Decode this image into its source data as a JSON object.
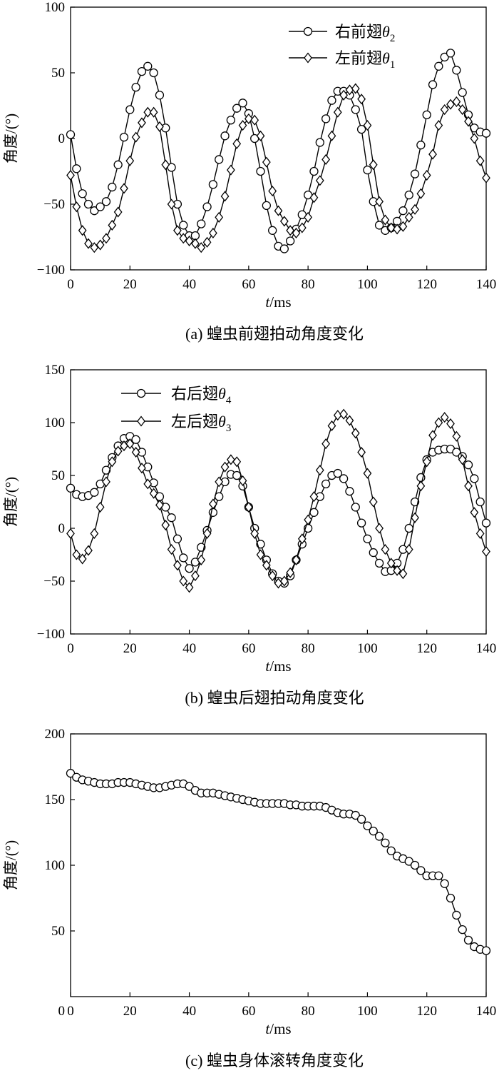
{
  "chart_data": [
    {
      "type": "line",
      "caption": "(a) 蝗虫前翅拍动角度变化",
      "xlabel_italic": "t",
      "xlabel_unit": "/ms",
      "ylabel": "角度/(°)",
      "xlim": [
        0,
        140
      ],
      "ylim": [
        -100,
        100
      ],
      "xticks": [
        0,
        20,
        40,
        60,
        80,
        100,
        120,
        140
      ],
      "yticks": [
        -100,
        -50,
        0,
        50,
        100
      ],
      "legend_position": "top-right",
      "series": [
        {
          "name": "右前翅θ2",
          "label_base": "右前翅",
          "label_sym": "θ",
          "label_sub": "2",
          "marker": "circle",
          "x": [
            0,
            2,
            4,
            6,
            8,
            10,
            12,
            14,
            16,
            18,
            20,
            22,
            24,
            26,
            28,
            30,
            32,
            34,
            36,
            38,
            40,
            42,
            44,
            46,
            48,
            50,
            52,
            54,
            56,
            58,
            60,
            62,
            64,
            66,
            68,
            70,
            72,
            74,
            76,
            78,
            80,
            82,
            84,
            86,
            88,
            90,
            92,
            94,
            96,
            98,
            100,
            102,
            104,
            106,
            108,
            110,
            112,
            114,
            116,
            118,
            120,
            122,
            124,
            126,
            128,
            130,
            132,
            134,
            136,
            138,
            140
          ],
          "y": [
            3,
            -23,
            -42,
            -50,
            -55,
            -52,
            -48,
            -37,
            -20,
            1,
            22,
            39,
            51,
            55,
            50,
            33,
            8,
            -22,
            -50,
            -66,
            -74,
            -74,
            -65,
            -52,
            -35,
            -16,
            2,
            14,
            23,
            27,
            19,
            0,
            -25,
            -51,
            -70,
            -82,
            -84,
            -78,
            -69,
            -58,
            -43,
            -25,
            -3,
            15,
            29,
            36,
            36,
            33,
            22,
            7,
            -24,
            -48,
            -66,
            -70,
            -68,
            -63,
            -55,
            -43,
            -27,
            -5,
            18,
            41,
            55,
            62,
            65,
            52,
            35,
            18,
            8,
            5,
            4
          ]
        },
        {
          "name": "左前翅θ1",
          "label_base": "左前翅",
          "label_sym": "θ",
          "label_sub": "1",
          "marker": "diamond",
          "x": [
            0,
            2,
            4,
            6,
            8,
            10,
            12,
            14,
            16,
            18,
            20,
            22,
            24,
            26,
            28,
            30,
            32,
            34,
            36,
            38,
            40,
            42,
            44,
            46,
            48,
            50,
            52,
            54,
            56,
            58,
            60,
            62,
            64,
            66,
            68,
            70,
            72,
            74,
            76,
            78,
            80,
            82,
            84,
            86,
            88,
            90,
            92,
            94,
            96,
            98,
            100,
            102,
            104,
            106,
            108,
            110,
            112,
            114,
            116,
            118,
            120,
            122,
            124,
            126,
            128,
            130,
            132,
            134,
            136,
            138,
            140
          ],
          "y": [
            -28,
            -52,
            -70,
            -80,
            -83,
            -81,
            -76,
            -66,
            -56,
            -38,
            -17,
            1,
            12,
            20,
            20,
            9,
            -20,
            -50,
            -70,
            -76,
            -78,
            -80,
            -83,
            -79,
            -72,
            -60,
            -44,
            -24,
            -4,
            10,
            15,
            14,
            2,
            -18,
            -40,
            -55,
            -63,
            -70,
            -72,
            -68,
            -60,
            -45,
            -32,
            -16,
            2,
            20,
            33,
            37,
            38,
            30,
            10,
            -20,
            -48,
            -62,
            -68,
            -69,
            -67,
            -60,
            -54,
            -42,
            -28,
            -12,
            10,
            22,
            26,
            28,
            22,
            13,
            0,
            -17,
            -30
          ]
        }
      ]
    },
    {
      "type": "line",
      "caption": "(b) 蝗虫后翅拍动角度变化",
      "xlabel_italic": "t",
      "xlabel_unit": "/ms",
      "ylabel": "角度/(°)",
      "xlim": [
        0,
        140
      ],
      "ylim": [
        -100,
        150
      ],
      "xticks": [
        0,
        20,
        40,
        60,
        80,
        100,
        120,
        140
      ],
      "yticks": [
        -100,
        -50,
        0,
        50,
        100,
        150
      ],
      "legend_position": "top-left",
      "series": [
        {
          "name": "右后翅θ4",
          "label_base": "右后翅",
          "label_sym": "θ",
          "label_sub": "4",
          "marker": "circle",
          "x": [
            0,
            2,
            4,
            6,
            8,
            10,
            12,
            14,
            16,
            18,
            20,
            22,
            24,
            26,
            28,
            30,
            32,
            34,
            36,
            38,
            40,
            42,
            44,
            46,
            48,
            50,
            52,
            54,
            56,
            58,
            60,
            62,
            64,
            66,
            68,
            70,
            72,
            74,
            76,
            78,
            80,
            82,
            84,
            86,
            88,
            90,
            92,
            94,
            96,
            98,
            100,
            102,
            104,
            106,
            108,
            110,
            112,
            114,
            116,
            118,
            120,
            122,
            124,
            126,
            128,
            130,
            132,
            134,
            136,
            138,
            140
          ],
          "y": [
            38,
            32,
            30,
            31,
            34,
            42,
            55,
            67,
            78,
            85,
            87,
            84,
            72,
            58,
            43,
            30,
            20,
            10,
            -10,
            -28,
            -38,
            -32,
            -18,
            -2,
            15,
            30,
            44,
            51,
            50,
            40,
            20,
            0,
            -15,
            -30,
            -43,
            -50,
            -52,
            -45,
            -30,
            -15,
            0,
            15,
            30,
            42,
            50,
            52,
            47,
            35,
            20,
            5,
            -10,
            -23,
            -33,
            -41,
            -40,
            -33,
            -20,
            0,
            25,
            48,
            65,
            72,
            74,
            75,
            75,
            72,
            68,
            60,
            47,
            25,
            5
          ]
        },
        {
          "name": "左后翅θ3",
          "label_base": "左后翅",
          "label_sym": "θ",
          "label_sub": "3",
          "marker": "diamond",
          "x": [
            0,
            2,
            4,
            6,
            8,
            10,
            12,
            14,
            16,
            18,
            20,
            22,
            24,
            26,
            28,
            30,
            32,
            34,
            36,
            38,
            40,
            42,
            44,
            46,
            48,
            50,
            52,
            54,
            56,
            58,
            60,
            62,
            64,
            66,
            68,
            70,
            72,
            74,
            76,
            78,
            80,
            82,
            84,
            86,
            88,
            90,
            92,
            94,
            96,
            98,
            100,
            102,
            104,
            106,
            108,
            110,
            112,
            114,
            116,
            118,
            120,
            122,
            124,
            126,
            128,
            130,
            132,
            134,
            136,
            138,
            140
          ],
          "y": [
            -5,
            -25,
            -29,
            -21,
            -5,
            20,
            44,
            63,
            73,
            78,
            80,
            72,
            57,
            42,
            33,
            22,
            3,
            -20,
            -35,
            -50,
            -56,
            -45,
            -30,
            -5,
            23,
            44,
            58,
            65,
            63,
            45,
            20,
            -5,
            -25,
            -35,
            -45,
            -52,
            -50,
            -42,
            -30,
            -10,
            8,
            30,
            55,
            80,
            97,
            107,
            108,
            102,
            90,
            72,
            52,
            25,
            0,
            -20,
            -33,
            -40,
            -43,
            -20,
            10,
            40,
            63,
            88,
            100,
            105,
            99,
            87,
            65,
            40,
            15,
            -5,
            -22
          ]
        }
      ]
    },
    {
      "type": "line",
      "caption": "(c) 蝗虫身体滚转角度变化",
      "xlabel_italic": "t",
      "xlabel_unit": "/ms",
      "ylabel": "角度/(°)",
      "xlim": [
        0,
        140
      ],
      "ylim": [
        0,
        200
      ],
      "xticks": [
        0,
        20,
        40,
        60,
        80,
        100,
        120,
        140
      ],
      "yticks": [
        50,
        100,
        150,
        200
      ],
      "series": [
        {
          "name": "身体滚转角",
          "marker": "circle",
          "x": [
            0,
            2,
            4,
            6,
            8,
            10,
            12,
            14,
            16,
            18,
            20,
            22,
            24,
            26,
            28,
            30,
            32,
            34,
            36,
            38,
            40,
            42,
            44,
            46,
            48,
            50,
            52,
            54,
            56,
            58,
            60,
            62,
            64,
            66,
            68,
            70,
            72,
            74,
            76,
            78,
            80,
            82,
            84,
            86,
            88,
            90,
            92,
            94,
            96,
            98,
            100,
            102,
            104,
            106,
            108,
            110,
            112,
            114,
            116,
            118,
            120,
            122,
            124,
            126,
            128,
            130,
            132,
            134,
            136,
            138,
            140
          ],
          "y": [
            170,
            167,
            165,
            164,
            163,
            162,
            162,
            162,
            163,
            163,
            163,
            162,
            161,
            160,
            159,
            159,
            160,
            161,
            162,
            162,
            160,
            157,
            155,
            155,
            155,
            154,
            153,
            152,
            151,
            150,
            149,
            148,
            147,
            147,
            147,
            147,
            147,
            146,
            146,
            145,
            145,
            145,
            145,
            144,
            142,
            140,
            139,
            139,
            138,
            135,
            130,
            126,
            122,
            117,
            111,
            107,
            105,
            103,
            100,
            96,
            92,
            92,
            92,
            86,
            75,
            62,
            51,
            43,
            38,
            36,
            35
          ]
        }
      ]
    }
  ]
}
